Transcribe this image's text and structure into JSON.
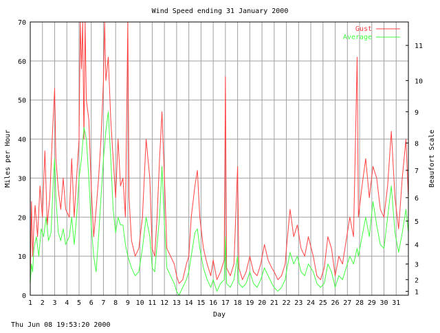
{
  "chart_data": {
    "type": "line",
    "title": "Wind Speed ending 31 January 2000",
    "xlabel": "Day",
    "ylabel": "Miles per Hour",
    "y2label": "Beaufort Scale",
    "footer": "Thu Jun 08 19:53:20 2000",
    "ylim": [
      0,
      70
    ],
    "xlim": [
      1,
      32
    ],
    "grid": true,
    "legend_position": "top-right",
    "y_ticks": [
      0,
      10,
      20,
      30,
      40,
      50,
      60,
      70
    ],
    "x_ticks": [
      1,
      2,
      3,
      4,
      5,
      6,
      7,
      8,
      9,
      10,
      11,
      12,
      13,
      14,
      15,
      16,
      17,
      18,
      19,
      20,
      21,
      22,
      23,
      24,
      25,
      26,
      27,
      28,
      29,
      30,
      31
    ],
    "beaufort_ticks": [
      {
        "label": "1",
        "mph": 1
      },
      {
        "label": "2",
        "mph": 4
      },
      {
        "label": "3",
        "mph": 8
      },
      {
        "label": "4",
        "mph": 13
      },
      {
        "label": "5",
        "mph": 19
      },
      {
        "label": "6",
        "mph": 25
      },
      {
        "label": "7",
        "mph": 32
      },
      {
        "label": "8",
        "mph": 39
      },
      {
        "label": "9",
        "mph": 47
      },
      {
        "label": "10",
        "mph": 55
      },
      {
        "label": "11",
        "mph": 64
      }
    ],
    "series": [
      {
        "name": "Gust",
        "color": "#ff4040",
        "points": [
          [
            1.0,
            3
          ],
          [
            1.1,
            24
          ],
          [
            1.2,
            10
          ],
          [
            1.3,
            18
          ],
          [
            1.4,
            23
          ],
          [
            1.6,
            15
          ],
          [
            1.8,
            28
          ],
          [
            2.0,
            20
          ],
          [
            2.2,
            37
          ],
          [
            2.4,
            18
          ],
          [
            2.6,
            25
          ],
          [
            2.8,
            40
          ],
          [
            3.0,
            53
          ],
          [
            3.1,
            35
          ],
          [
            3.3,
            27
          ],
          [
            3.5,
            22
          ],
          [
            3.7,
            30
          ],
          [
            3.9,
            22
          ],
          [
            4.2,
            20
          ],
          [
            4.4,
            35
          ],
          [
            4.6,
            20
          ],
          [
            4.8,
            30
          ],
          [
            5.0,
            40
          ],
          [
            5.1,
            70
          ],
          [
            5.2,
            58
          ],
          [
            5.3,
            70
          ],
          [
            5.4,
            40
          ],
          [
            5.5,
            70
          ],
          [
            5.6,
            50
          ],
          [
            5.8,
            45
          ],
          [
            6.0,
            28
          ],
          [
            6.2,
            15
          ],
          [
            6.4,
            22
          ],
          [
            6.6,
            30
          ],
          [
            6.8,
            40
          ],
          [
            7.0,
            55
          ],
          [
            7.1,
            70
          ],
          [
            7.2,
            55
          ],
          [
            7.4,
            61
          ],
          [
            7.6,
            45
          ],
          [
            7.8,
            35
          ],
          [
            8.0,
            25
          ],
          [
            8.2,
            40
          ],
          [
            8.4,
            28
          ],
          [
            8.6,
            30
          ],
          [
            8.8,
            20
          ],
          [
            9.0,
            70
          ],
          [
            9.1,
            25
          ],
          [
            9.3,
            14
          ],
          [
            9.6,
            10
          ],
          [
            9.9,
            12
          ],
          [
            10.2,
            20
          ],
          [
            10.5,
            40
          ],
          [
            10.8,
            30
          ],
          [
            11.0,
            12
          ],
          [
            11.2,
            10
          ],
          [
            11.4,
            20
          ],
          [
            11.6,
            35
          ],
          [
            11.8,
            47
          ],
          [
            12.0,
            30
          ],
          [
            12.2,
            12
          ],
          [
            12.5,
            10
          ],
          [
            12.8,
            8
          ],
          [
            13.0,
            5
          ],
          [
            13.2,
            3
          ],
          [
            13.5,
            4
          ],
          [
            13.8,
            8
          ],
          [
            14.0,
            10
          ],
          [
            14.2,
            20
          ],
          [
            14.5,
            28
          ],
          [
            14.7,
            32
          ],
          [
            14.9,
            20
          ],
          [
            15.2,
            12
          ],
          [
            15.5,
            8
          ],
          [
            15.8,
            5
          ],
          [
            16.0,
            9
          ],
          [
            16.3,
            4
          ],
          [
            16.6,
            6
          ],
          [
            16.9,
            9
          ],
          [
            17.0,
            56
          ],
          [
            17.1,
            7
          ],
          [
            17.4,
            5
          ],
          [
            17.7,
            8
          ],
          [
            18.0,
            33
          ],
          [
            18.1,
            7
          ],
          [
            18.4,
            4
          ],
          [
            18.7,
            6
          ],
          [
            19.0,
            10
          ],
          [
            19.3,
            6
          ],
          [
            19.6,
            5
          ],
          [
            19.9,
            8
          ],
          [
            20.2,
            13
          ],
          [
            20.5,
            9
          ],
          [
            20.8,
            7
          ],
          [
            21.0,
            6
          ],
          [
            21.3,
            4
          ],
          [
            21.6,
            5
          ],
          [
            21.9,
            8
          ],
          [
            22.0,
            12
          ],
          [
            22.3,
            22
          ],
          [
            22.6,
            15
          ],
          [
            22.9,
            18
          ],
          [
            23.2,
            12
          ],
          [
            23.5,
            10
          ],
          [
            23.8,
            15
          ],
          [
            24.2,
            10
          ],
          [
            24.5,
            5
          ],
          [
            24.8,
            4
          ],
          [
            25.1,
            7
          ],
          [
            25.4,
            15
          ],
          [
            25.7,
            12
          ],
          [
            26.0,
            5
          ],
          [
            26.3,
            10
          ],
          [
            26.6,
            8
          ],
          [
            26.9,
            14
          ],
          [
            27.2,
            20
          ],
          [
            27.5,
            15
          ],
          [
            27.8,
            61
          ],
          [
            27.9,
            20
          ],
          [
            28.2,
            28
          ],
          [
            28.5,
            35
          ],
          [
            28.8,
            25
          ],
          [
            29.1,
            33
          ],
          [
            29.4,
            30
          ],
          [
            29.7,
            22
          ],
          [
            30.0,
            20
          ],
          [
            30.3,
            28
          ],
          [
            30.6,
            42
          ],
          [
            30.9,
            25
          ],
          [
            31.2,
            17
          ],
          [
            31.5,
            30
          ],
          [
            31.8,
            40
          ],
          [
            32.0,
            25
          ]
        ]
      },
      {
        "name": "Average",
        "color": "#40ff40",
        "points": [
          [
            1.0,
            3
          ],
          [
            1.1,
            8
          ],
          [
            1.2,
            6
          ],
          [
            1.3,
            12
          ],
          [
            1.5,
            15
          ],
          [
            1.7,
            10
          ],
          [
            1.9,
            17
          ],
          [
            2.1,
            15
          ],
          [
            2.3,
            20
          ],
          [
            2.5,
            14
          ],
          [
            2.7,
            16
          ],
          [
            2.9,
            30
          ],
          [
            3.0,
            35
          ],
          [
            3.1,
            25
          ],
          [
            3.3,
            16
          ],
          [
            3.5,
            14
          ],
          [
            3.7,
            17
          ],
          [
            3.9,
            13
          ],
          [
            4.2,
            15
          ],
          [
            4.4,
            20
          ],
          [
            4.6,
            13
          ],
          [
            4.8,
            20
          ],
          [
            5.0,
            30
          ],
          [
            5.2,
            35
          ],
          [
            5.4,
            43
          ],
          [
            5.6,
            40
          ],
          [
            5.8,
            30
          ],
          [
            6.0,
            18
          ],
          [
            6.2,
            10
          ],
          [
            6.4,
            6
          ],
          [
            6.6,
            15
          ],
          [
            6.8,
            25
          ],
          [
            7.0,
            35
          ],
          [
            7.2,
            42
          ],
          [
            7.4,
            47
          ],
          [
            7.6,
            35
          ],
          [
            7.8,
            22
          ],
          [
            8.0,
            16
          ],
          [
            8.2,
            20
          ],
          [
            8.4,
            18
          ],
          [
            8.6,
            18
          ],
          [
            8.8,
            13
          ],
          [
            9.0,
            10
          ],
          [
            9.3,
            7
          ],
          [
            9.6,
            5
          ],
          [
            9.9,
            6
          ],
          [
            10.2,
            12
          ],
          [
            10.5,
            20
          ],
          [
            10.8,
            15
          ],
          [
            11.0,
            7
          ],
          [
            11.2,
            6
          ],
          [
            11.4,
            13
          ],
          [
            11.6,
            20
          ],
          [
            11.8,
            33
          ],
          [
            12.0,
            18
          ],
          [
            12.2,
            7
          ],
          [
            12.5,
            5
          ],
          [
            12.8,
            3
          ],
          [
            13.0,
            1
          ],
          [
            13.2,
            0
          ],
          [
            13.5,
            2
          ],
          [
            13.8,
            4
          ],
          [
            14.0,
            6
          ],
          [
            14.2,
            10
          ],
          [
            14.5,
            16
          ],
          [
            14.7,
            17
          ],
          [
            14.9,
            12
          ],
          [
            15.2,
            7
          ],
          [
            15.5,
            4
          ],
          [
            15.8,
            2
          ],
          [
            16.0,
            4
          ],
          [
            16.3,
            1
          ],
          [
            16.6,
            3
          ],
          [
            16.9,
            4
          ],
          [
            17.0,
            15
          ],
          [
            17.1,
            3
          ],
          [
            17.4,
            2
          ],
          [
            17.7,
            4
          ],
          [
            18.0,
            10
          ],
          [
            18.1,
            3
          ],
          [
            18.4,
            2
          ],
          [
            18.7,
            3
          ],
          [
            19.0,
            6
          ],
          [
            19.3,
            3
          ],
          [
            19.6,
            2
          ],
          [
            19.9,
            4
          ],
          [
            20.2,
            7
          ],
          [
            20.5,
            5
          ],
          [
            20.8,
            3
          ],
          [
            21.0,
            2
          ],
          [
            21.3,
            1
          ],
          [
            21.6,
            2
          ],
          [
            21.9,
            4
          ],
          [
            22.0,
            6
          ],
          [
            22.3,
            11
          ],
          [
            22.6,
            8
          ],
          [
            22.9,
            10
          ],
          [
            23.2,
            6
          ],
          [
            23.5,
            5
          ],
          [
            23.8,
            8
          ],
          [
            24.2,
            6
          ],
          [
            24.5,
            3
          ],
          [
            24.8,
            2
          ],
          [
            25.1,
            3
          ],
          [
            25.4,
            8
          ],
          [
            25.7,
            6
          ],
          [
            26.0,
            2
          ],
          [
            26.3,
            5
          ],
          [
            26.6,
            4
          ],
          [
            26.9,
            7
          ],
          [
            27.2,
            10
          ],
          [
            27.5,
            8
          ],
          [
            27.8,
            12
          ],
          [
            27.9,
            10
          ],
          [
            28.2,
            15
          ],
          [
            28.5,
            20
          ],
          [
            28.8,
            15
          ],
          [
            29.1,
            24
          ],
          [
            29.4,
            18
          ],
          [
            29.7,
            13
          ],
          [
            30.0,
            12
          ],
          [
            30.3,
            20
          ],
          [
            30.6,
            28
          ],
          [
            30.9,
            16
          ],
          [
            31.2,
            11
          ],
          [
            31.5,
            16
          ],
          [
            31.8,
            22
          ],
          [
            32.0,
            16
          ]
        ]
      }
    ]
  }
}
